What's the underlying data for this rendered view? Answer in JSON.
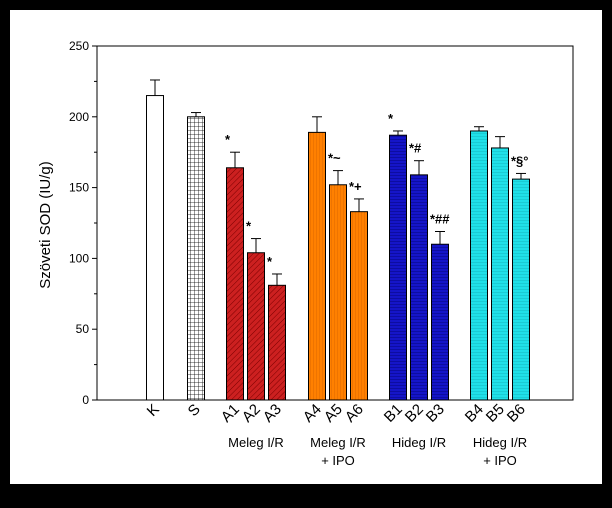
{
  "chart_data": {
    "type": "bar",
    "ylabel": "Szöveti SOD (IU/g)",
    "xlabel": "",
    "ylim": [
      0,
      250
    ],
    "yticks": [
      0,
      50,
      100,
      150,
      200,
      250
    ],
    "grid": false,
    "categories": [
      "K",
      "S",
      "A1",
      "A2",
      "A3",
      "A4",
      "A5",
      "A6",
      "B1",
      "B2",
      "B3",
      "B4",
      "B5",
      "B6"
    ],
    "values": [
      215,
      200,
      164,
      104,
      81,
      189,
      152,
      133,
      187,
      159,
      110,
      190,
      178,
      156
    ],
    "errors": [
      11,
      3,
      11,
      10,
      8,
      11,
      10,
      9,
      3,
      10,
      9,
      3,
      8,
      4
    ],
    "annotations": [
      "",
      "",
      "*",
      "*",
      "*",
      "",
      "*~",
      "*+",
      "*",
      "*#",
      "*##",
      "",
      "",
      "*§°"
    ],
    "groups": [
      {
        "label_line1": "Meleg I/R",
        "label_line2": "",
        "members": [
          "A1",
          "A2",
          "A3"
        ]
      },
      {
        "label_line1": "Meleg I/R",
        "label_line2": "+ IPO",
        "members": [
          "A4",
          "A5",
          "A6"
        ]
      },
      {
        "label_line1": "Hideg I/R",
        "label_line2": "",
        "members": [
          "B1",
          "B2",
          "B3"
        ]
      },
      {
        "label_line1": "Hideg I/R",
        "label_line2": "+ IPO",
        "members": [
          "B4",
          "B5",
          "B6"
        ]
      }
    ],
    "colors": {
      "K": "#ffffff",
      "S": "#ffffff",
      "A": "#cc2020",
      "A_alt": "#ff8000",
      "B": "#1515c8",
      "B_alt": "#20e0e8"
    }
  }
}
